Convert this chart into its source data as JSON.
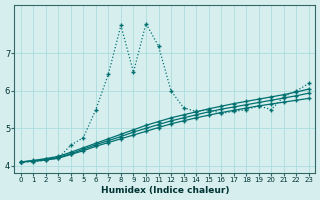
{
  "xlabel": "Humidex (Indice chaleur)",
  "bg_color": "#d6eeee",
  "grid_color": "#aadddd",
  "line_color": "#007070",
  "xlim": [
    -0.5,
    23.5
  ],
  "ylim": [
    3.8,
    8.3
  ],
  "yticks": [
    4,
    5,
    6,
    7
  ],
  "xticks": [
    0,
    1,
    2,
    3,
    4,
    5,
    6,
    7,
    8,
    9,
    10,
    11,
    12,
    13,
    14,
    15,
    16,
    17,
    18,
    19,
    20,
    21,
    22,
    23
  ],
  "jagged_x": [
    0,
    1,
    2,
    3,
    4,
    5,
    6,
    7,
    8,
    9,
    10,
    11,
    12,
    13,
    14,
    15,
    16,
    17,
    18,
    19,
    20,
    21,
    22,
    23
  ],
  "jagged_y": [
    4.1,
    4.1,
    4.15,
    4.2,
    4.55,
    4.75,
    5.5,
    6.45,
    7.75,
    6.5,
    7.8,
    7.2,
    6.0,
    5.55,
    5.45,
    5.5,
    5.4,
    5.45,
    5.5,
    5.6,
    5.5,
    5.85,
    6.0,
    6.2
  ],
  "linear1_x": [
    0,
    1,
    2,
    3,
    4,
    5,
    6,
    7,
    8,
    9,
    10,
    11,
    12,
    13,
    14,
    15,
    16,
    17,
    18,
    19,
    20,
    21,
    22,
    23
  ],
  "linear1_y": [
    4.1,
    4.12,
    4.15,
    4.2,
    4.3,
    4.4,
    4.52,
    4.62,
    4.72,
    4.82,
    4.92,
    5.02,
    5.12,
    5.2,
    5.28,
    5.35,
    5.42,
    5.48,
    5.54,
    5.6,
    5.65,
    5.7,
    5.75,
    5.8
  ],
  "linear2_x": [
    0,
    1,
    2,
    3,
    4,
    5,
    6,
    7,
    8,
    9,
    10,
    11,
    12,
    13,
    14,
    15,
    16,
    17,
    18,
    19,
    20,
    21,
    22,
    23
  ],
  "linear2_y": [
    4.1,
    4.13,
    4.17,
    4.22,
    4.32,
    4.44,
    4.56,
    4.67,
    4.78,
    4.9,
    5.0,
    5.1,
    5.2,
    5.28,
    5.36,
    5.44,
    5.51,
    5.57,
    5.63,
    5.69,
    5.75,
    5.81,
    5.87,
    5.94
  ],
  "linear3_x": [
    0,
    1,
    2,
    3,
    4,
    5,
    6,
    7,
    8,
    9,
    10,
    11,
    12,
    13,
    14,
    15,
    16,
    17,
    18,
    19,
    20,
    21,
    22,
    23
  ],
  "linear3_y": [
    4.1,
    4.14,
    4.19,
    4.25,
    4.36,
    4.48,
    4.6,
    4.72,
    4.84,
    4.96,
    5.08,
    5.18,
    5.28,
    5.36,
    5.44,
    5.52,
    5.59,
    5.66,
    5.72,
    5.78,
    5.84,
    5.9,
    5.97,
    6.05
  ],
  "marker": "+",
  "markersize": 3,
  "linewidth": 0.9
}
